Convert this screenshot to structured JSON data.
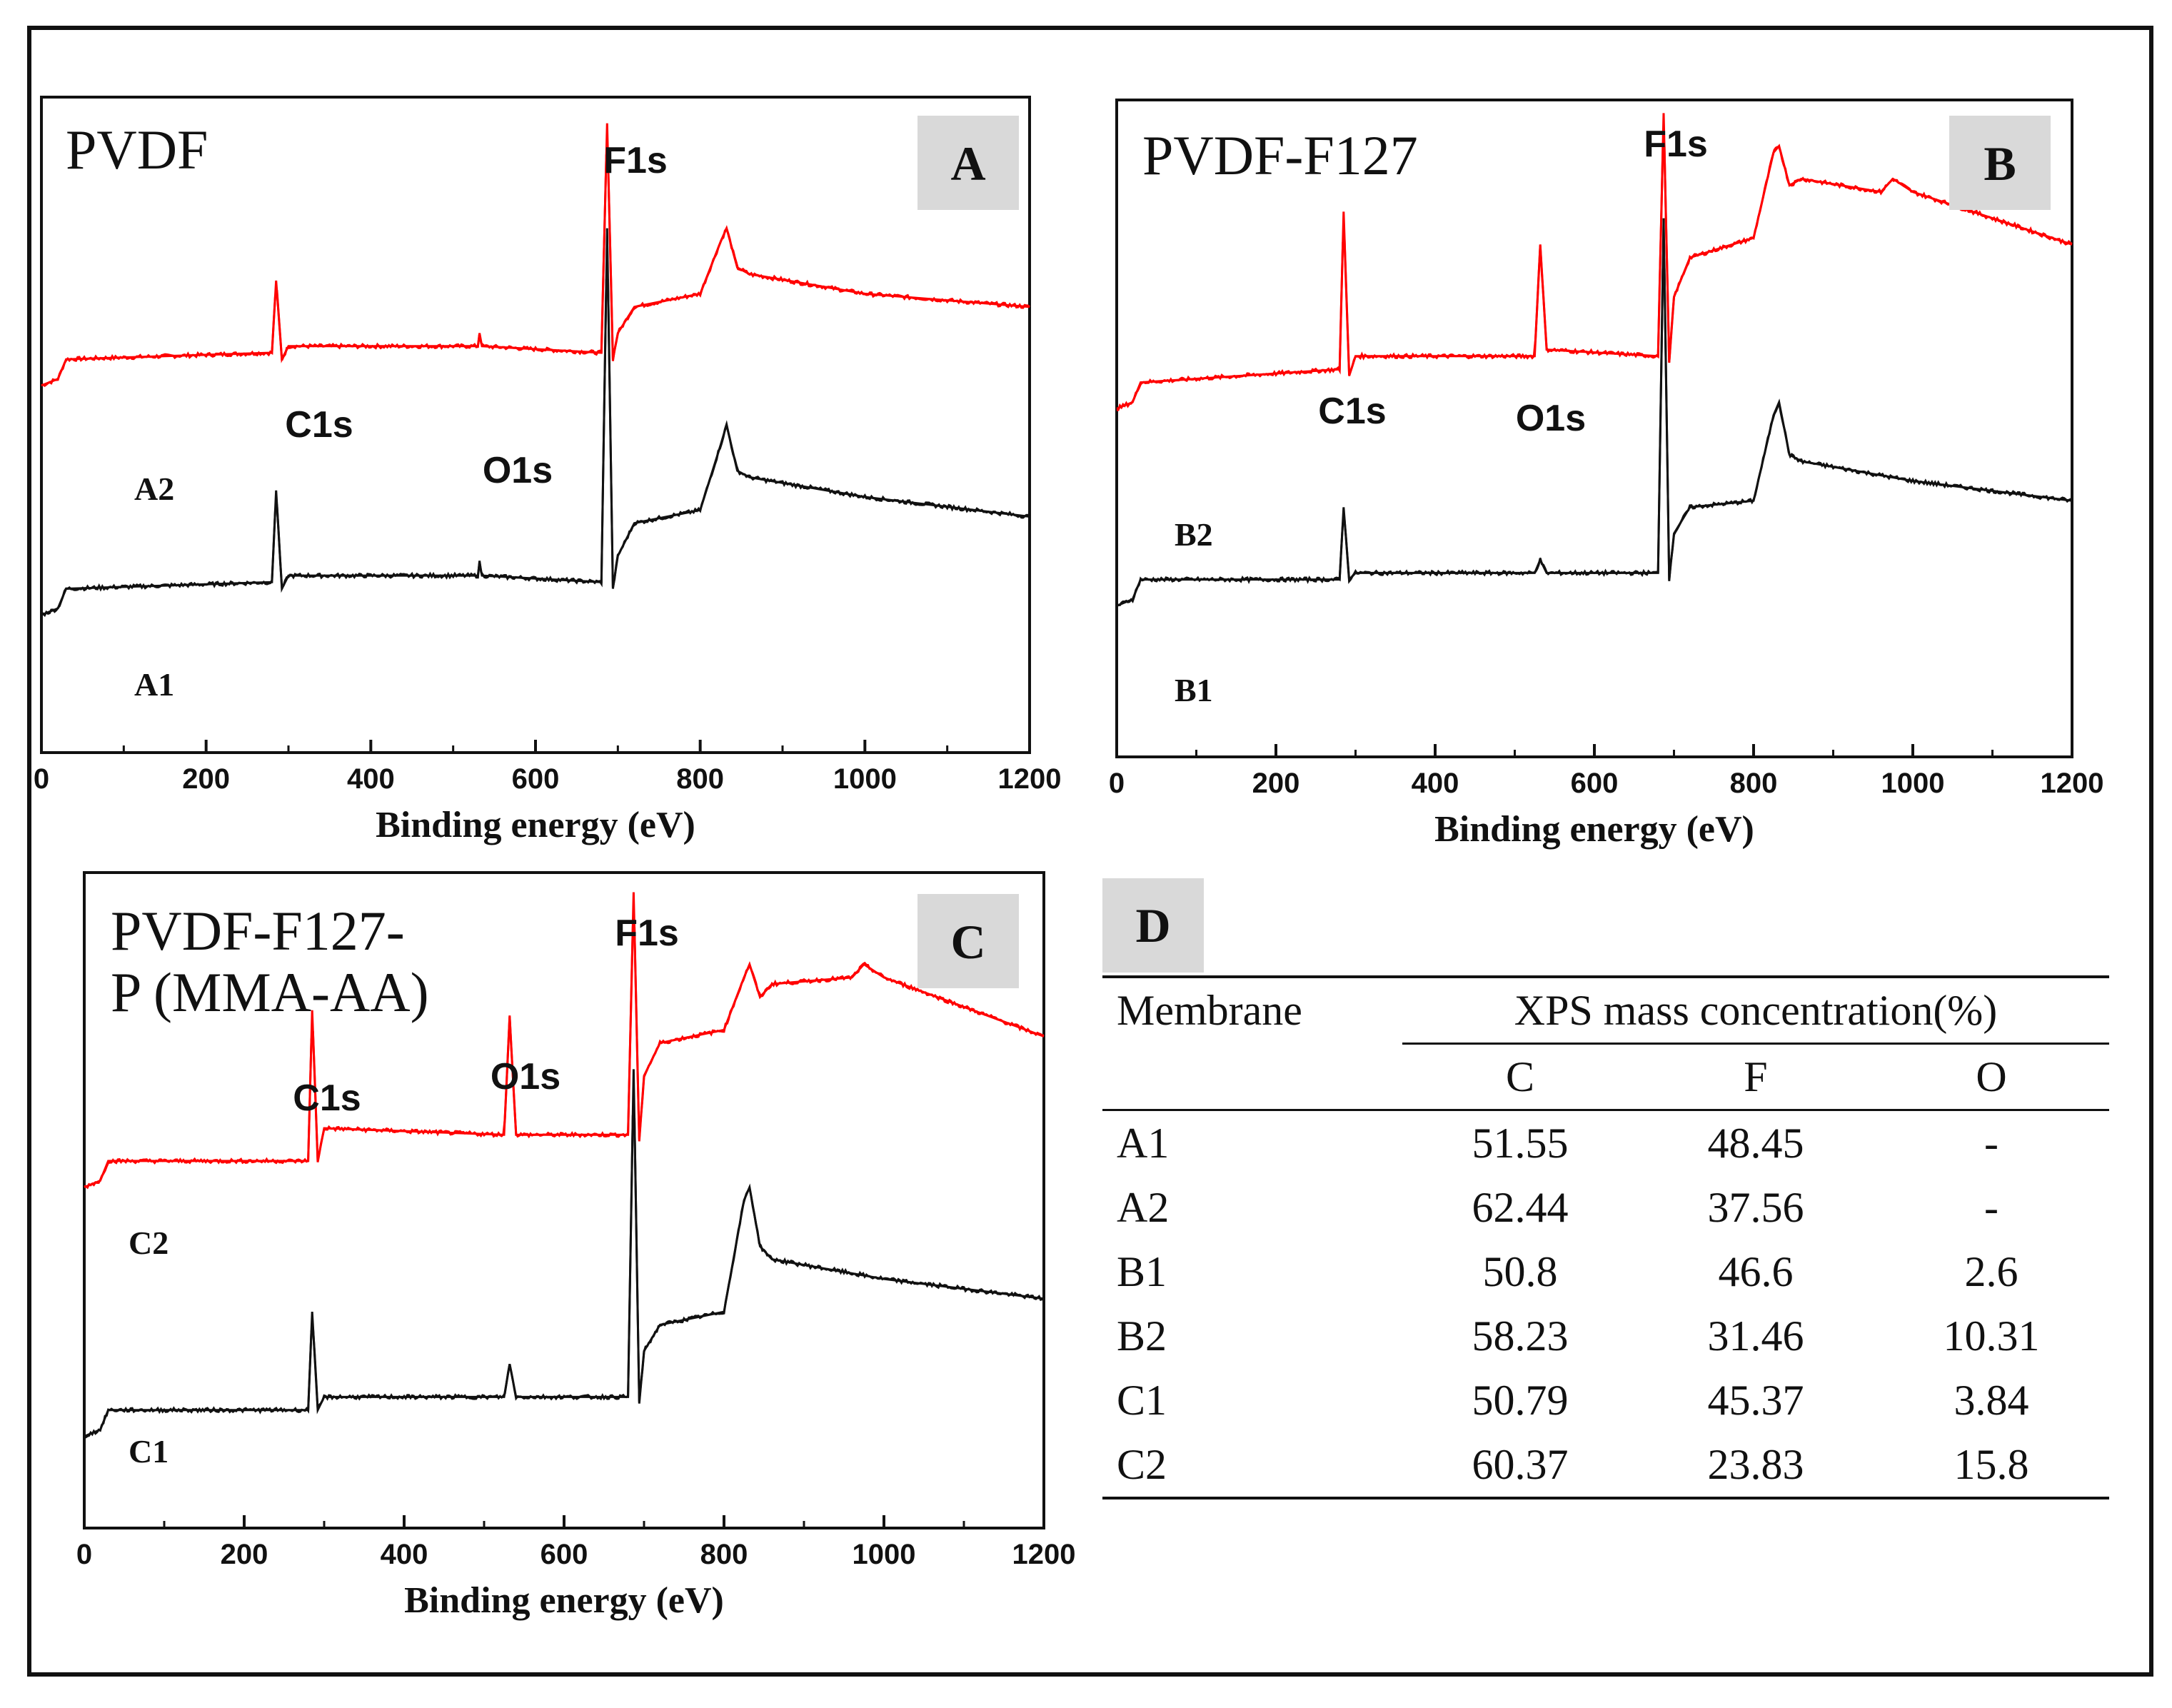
{
  "chart_data": [
    {
      "panel": "A",
      "type": "line",
      "title": "PVDF",
      "badge": "A",
      "xlabel": "Binding energy (eV)",
      "ylabel": "",
      "xlim": [
        0,
        1200
      ],
      "xticks": [
        0,
        200,
        400,
        600,
        800,
        1000,
        1200
      ],
      "peak_labels": [
        {
          "text": "C1s",
          "x": 285
        },
        {
          "text": "O1s",
          "x": 532
        },
        {
          "text": "F1s",
          "x": 687
        }
      ],
      "series": [
        {
          "name": "A2",
          "color": "#ff0000",
          "baseline": 0.6,
          "knots": [
            [
              0,
              0.56
            ],
            [
              20,
              0.57
            ],
            [
              30,
              0.6
            ],
            [
              280,
              0.61
            ],
            [
              285,
              0.72
            ],
            [
              292,
              0.6
            ],
            [
              300,
              0.62
            ],
            [
              530,
              0.62
            ],
            [
              532,
              0.64
            ],
            [
              535,
              0.62
            ],
            [
              680,
              0.61
            ],
            [
              687,
              0.96
            ],
            [
              694,
              0.6
            ],
            [
              700,
              0.64
            ],
            [
              720,
              0.68
            ],
            [
              800,
              0.7
            ],
            [
              825,
              0.78
            ],
            [
              832,
              0.8
            ],
            [
              845,
              0.74
            ],
            [
              860,
              0.73
            ],
            [
              1000,
              0.7
            ],
            [
              1200,
              0.68
            ]
          ]
        },
        {
          "name": "A1",
          "color": "#111111",
          "baseline": 0.25,
          "knots": [
            [
              0,
              0.21
            ],
            [
              20,
              0.22
            ],
            [
              30,
              0.25
            ],
            [
              280,
              0.26
            ],
            [
              285,
              0.4
            ],
            [
              292,
              0.25
            ],
            [
              300,
              0.27
            ],
            [
              530,
              0.27
            ],
            [
              532,
              0.29
            ],
            [
              535,
              0.27
            ],
            [
              680,
              0.26
            ],
            [
              687,
              0.8
            ],
            [
              694,
              0.25
            ],
            [
              700,
              0.3
            ],
            [
              720,
              0.35
            ],
            [
              800,
              0.37
            ],
            [
              825,
              0.47
            ],
            [
              832,
              0.5
            ],
            [
              845,
              0.43
            ],
            [
              860,
              0.42
            ],
            [
              1000,
              0.39
            ],
            [
              1200,
              0.36
            ]
          ]
        }
      ]
    },
    {
      "panel": "B",
      "type": "line",
      "title": "PVDF-F127",
      "badge": "B",
      "xlabel": "Binding energy (eV)",
      "ylabel": "",
      "xlim": [
        0,
        1200
      ],
      "xticks": [
        0,
        200,
        400,
        600,
        800,
        1000,
        1200
      ],
      "peak_labels": [
        {
          "text": "C1s",
          "x": 285
        },
        {
          "text": "O1s",
          "x": 532
        },
        {
          "text": "F1s",
          "x": 687
        }
      ],
      "series": [
        {
          "name": "B2",
          "color": "#ff0000",
          "knots": [
            [
              0,
              0.53
            ],
            [
              20,
              0.54
            ],
            [
              30,
              0.57
            ],
            [
              280,
              0.59
            ],
            [
              285,
              0.83
            ],
            [
              292,
              0.58
            ],
            [
              300,
              0.61
            ],
            [
              525,
              0.61
            ],
            [
              532,
              0.78
            ],
            [
              540,
              0.62
            ],
            [
              680,
              0.61
            ],
            [
              687,
              0.98
            ],
            [
              694,
              0.6
            ],
            [
              700,
              0.7
            ],
            [
              720,
              0.76
            ],
            [
              800,
              0.79
            ],
            [
              825,
              0.92
            ],
            [
              832,
              0.93
            ],
            [
              845,
              0.87
            ],
            [
              860,
              0.88
            ],
            [
              960,
              0.86
            ],
            [
              975,
              0.88
            ],
            [
              1000,
              0.86
            ],
            [
              1200,
              0.78
            ]
          ]
        },
        {
          "name": "B1",
          "color": "#111111",
          "knots": [
            [
              0,
              0.23
            ],
            [
              20,
              0.24
            ],
            [
              30,
              0.27
            ],
            [
              280,
              0.27
            ],
            [
              285,
              0.38
            ],
            [
              292,
              0.27
            ],
            [
              300,
              0.28
            ],
            [
              525,
              0.28
            ],
            [
              532,
              0.3
            ],
            [
              540,
              0.28
            ],
            [
              680,
              0.28
            ],
            [
              687,
              0.82
            ],
            [
              694,
              0.27
            ],
            [
              700,
              0.34
            ],
            [
              720,
              0.38
            ],
            [
              800,
              0.39
            ],
            [
              825,
              0.52
            ],
            [
              832,
              0.54
            ],
            [
              845,
              0.46
            ],
            [
              860,
              0.45
            ],
            [
              1000,
              0.42
            ],
            [
              1200,
              0.39
            ]
          ]
        }
      ]
    },
    {
      "panel": "C",
      "type": "line",
      "title": "PVDF-F127-\nP (MMA-AA)",
      "title_lines": [
        "PVDF-F127-",
        "P (MMA-AA)"
      ],
      "badge": "C",
      "xlabel": "Binding energy (eV)",
      "ylabel": "",
      "xlim": [
        0,
        1200
      ],
      "xticks": [
        0,
        200,
        400,
        600,
        800,
        1000,
        1200
      ],
      "peak_labels": [
        {
          "text": "C1s",
          "x": 285
        },
        {
          "text": "O1s",
          "x": 532
        },
        {
          "text": "F1s",
          "x": 687
        }
      ],
      "series": [
        {
          "name": "C2",
          "color": "#ff0000",
          "knots": [
            [
              0,
              0.52
            ],
            [
              20,
              0.53
            ],
            [
              30,
              0.56
            ],
            [
              280,
              0.56
            ],
            [
              285,
              0.79
            ],
            [
              292,
              0.56
            ],
            [
              300,
              0.61
            ],
            [
              525,
              0.6
            ],
            [
              532,
              0.78
            ],
            [
              540,
              0.6
            ],
            [
              680,
              0.6
            ],
            [
              687,
              0.97
            ],
            [
              694,
              0.59
            ],
            [
              700,
              0.69
            ],
            [
              720,
              0.74
            ],
            [
              800,
              0.76
            ],
            [
              825,
              0.84
            ],
            [
              832,
              0.86
            ],
            [
              845,
              0.81
            ],
            [
              860,
              0.83
            ],
            [
              960,
              0.84
            ],
            [
              975,
              0.86
            ],
            [
              1000,
              0.84
            ],
            [
              1200,
              0.75
            ]
          ]
        },
        {
          "name": "C1",
          "color": "#111111",
          "knots": [
            [
              0,
              0.14
            ],
            [
              20,
              0.15
            ],
            [
              30,
              0.18
            ],
            [
              280,
              0.18
            ],
            [
              285,
              0.33
            ],
            [
              292,
              0.18
            ],
            [
              300,
              0.2
            ],
            [
              525,
              0.2
            ],
            [
              532,
              0.25
            ],
            [
              540,
              0.2
            ],
            [
              680,
              0.2
            ],
            [
              687,
              0.7
            ],
            [
              694,
              0.19
            ],
            [
              700,
              0.27
            ],
            [
              720,
              0.31
            ],
            [
              800,
              0.33
            ],
            [
              825,
              0.5
            ],
            [
              832,
              0.52
            ],
            [
              845,
              0.43
            ],
            [
              860,
              0.41
            ],
            [
              1000,
              0.38
            ],
            [
              1200,
              0.35
            ]
          ]
        }
      ]
    },
    {
      "panel": "D",
      "type": "table",
      "badge": "D",
      "col_membrane": "Membrane",
      "col_group": "XPS mass concentration(%)",
      "sub_cols": [
        "C",
        "F",
        "O"
      ],
      "rows": [
        {
          "membrane": "A1",
          "C": "51.55",
          "F": "48.45",
          "O": "-"
        },
        {
          "membrane": "A2",
          "C": "62.44",
          "F": "37.56",
          "O": "-"
        },
        {
          "membrane": "B1",
          "C": "50.8",
          "F": "46.6",
          "O": "2.6"
        },
        {
          "membrane": "B2",
          "C": "58.23",
          "F": "31.46",
          "O": "10.31"
        },
        {
          "membrane": "C1",
          "C": "50.79",
          "F": "45.37",
          "O": "3.84"
        },
        {
          "membrane": "C2",
          "C": "60.37",
          "F": "23.83",
          "O": "15.8"
        }
      ]
    }
  ]
}
